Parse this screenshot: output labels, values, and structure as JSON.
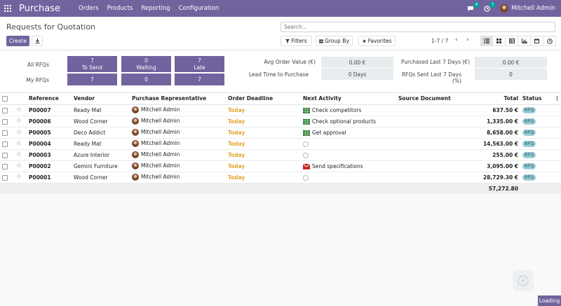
{
  "navbar": {
    "brand": "Purchase",
    "menu": [
      "Orders",
      "Products",
      "Reporting",
      "Configuration"
    ],
    "messages_badge": "4",
    "activities_badge": "7",
    "user": "Mitchell Admin"
  },
  "control": {
    "title": "Requests for Quotation",
    "create_label": "Create",
    "search_placeholder": "Search...",
    "filters_label": "Filters",
    "groupby_label": "Group By",
    "favorites_label": "Favorites",
    "pager": "1-7 / 7"
  },
  "dashboard": {
    "all_rfqs_label": "All RFQs",
    "my_rfqs_label": "My RFQs",
    "tiles": [
      {
        "all": "7",
        "label": "To Send",
        "mine": "7"
      },
      {
        "all": "0",
        "label": "Waiting",
        "mine": "0"
      },
      {
        "all": "7",
        "label": "Late",
        "mine": "7"
      }
    ],
    "kpis": {
      "avg_label": "Avg Order Value (€)",
      "avg_value": "0.00 €",
      "lead_label": "Lead Time to Purchase",
      "lead_value": "0  Days",
      "purchased_label": "Purchased Last 7 Days (€)",
      "purchased_value": "0.00 €",
      "sent_label": "RFQs Sent Last 7 Days (%)",
      "sent_value": "0"
    }
  },
  "table": {
    "headers": {
      "reference": "Reference",
      "vendor": "Vendor",
      "rep": "Purchase Representative",
      "deadline": "Order Deadline",
      "activity": "Next Activity",
      "source": "Source Document",
      "total": "Total",
      "status": "Status"
    },
    "rows": [
      {
        "ref": "P00007",
        "vendor": "Ready Mat",
        "rep": "Mitchell Admin",
        "deadline": "Today",
        "activity": "Check competitors",
        "activity_icon": "spreadsheet",
        "total": "637.50 €",
        "status": "RFQ"
      },
      {
        "ref": "P00006",
        "vendor": "Wood Corner",
        "rep": "Mitchell Admin",
        "deadline": "Today",
        "activity": "Check optional products",
        "activity_icon": "spreadsheet",
        "total": "1,335.00 €",
        "status": "RFQ"
      },
      {
        "ref": "P00005",
        "vendor": "Deco Addict",
        "rep": "Mitchell Admin",
        "deadline": "Today",
        "activity": "Get approval",
        "activity_icon": "spreadsheet",
        "total": "8,658.00 €",
        "status": "RFQ"
      },
      {
        "ref": "P00004",
        "vendor": "Ready Mat",
        "rep": "Mitchell Admin",
        "deadline": "Today",
        "activity": "",
        "activity_icon": "clock",
        "total": "14,563.00 €",
        "status": "RFQ"
      },
      {
        "ref": "P00003",
        "vendor": "Azure Interior",
        "rep": "Mitchell Admin",
        "deadline": "Today",
        "activity": "",
        "activity_icon": "clock",
        "total": "255.00 €",
        "status": "RFQ"
      },
      {
        "ref": "P00002",
        "vendor": "Gemini Furniture",
        "rep": "Mitchell Admin",
        "deadline": "Today",
        "activity": "Send specifications",
        "activity_icon": "envelope",
        "total": "3,095.00 €",
        "status": "RFQ"
      },
      {
        "ref": "P00001",
        "vendor": "Wood Corner",
        "rep": "Mitchell Admin",
        "deadline": "Today",
        "activity": "",
        "activity_icon": "clock",
        "total": "28,729.30 €",
        "status": "RFQ"
      }
    ],
    "grand_total": "57,272.80"
  },
  "loading_label": "Loading",
  "colors": {
    "brand": "#71639e",
    "accent": "#00a09d",
    "deadline": "#e3a52a"
  }
}
